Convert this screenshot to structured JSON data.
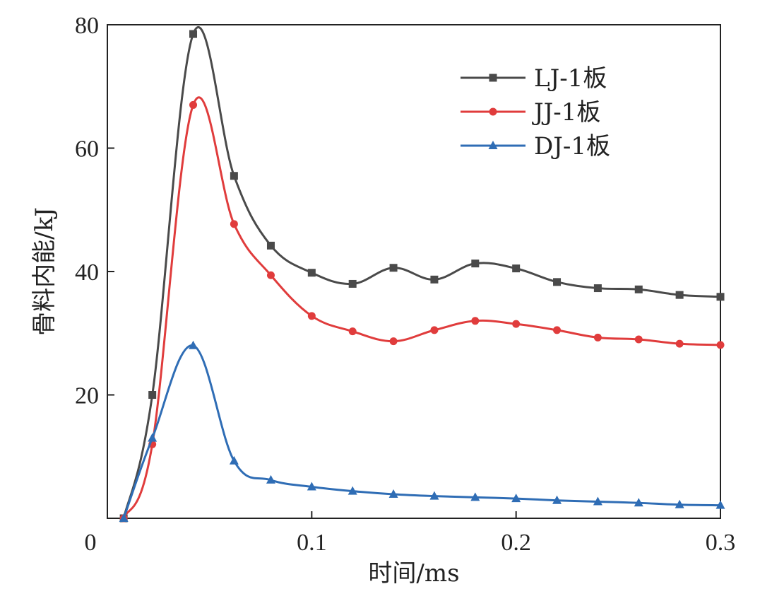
{
  "chart_data": {
    "type": "line",
    "title": "",
    "xlabel": "时间/ms",
    "ylabel": "骨料内能/kJ",
    "xlim": [
      0,
      0.3
    ],
    "ylim": [
      0,
      80
    ],
    "x_ticks": [
      "0",
      "0.1",
      "0.2",
      "0.3"
    ],
    "y_ticks": [
      "20",
      "40",
      "60",
      "80"
    ],
    "grid": false,
    "legend_position": "top-right",
    "series": [
      {
        "name": "LJ-1板",
        "color": "#4a4a4a",
        "marker": "square",
        "points": [
          [
            0.008,
            0
          ],
          [
            0.022,
            20
          ],
          [
            0.042,
            78.5
          ],
          [
            0.062,
            55.5
          ],
          [
            0.08,
            44.2
          ],
          [
            0.1,
            39.8
          ],
          [
            0.12,
            38
          ],
          [
            0.14,
            40.6
          ],
          [
            0.16,
            38.7
          ],
          [
            0.18,
            41.3
          ],
          [
            0.2,
            40.5
          ],
          [
            0.22,
            38.3
          ],
          [
            0.24,
            37.3
          ],
          [
            0.26,
            37.1
          ],
          [
            0.28,
            36.2
          ],
          [
            0.3,
            35.9
          ]
        ]
      },
      {
        "name": "JJ-1板",
        "color": "#e03c3c",
        "marker": "circle",
        "points": [
          [
            0.008,
            0
          ],
          [
            0.022,
            12
          ],
          [
            0.042,
            67
          ],
          [
            0.062,
            47.7
          ],
          [
            0.08,
            39.4
          ],
          [
            0.1,
            32.8
          ],
          [
            0.12,
            30.3
          ],
          [
            0.14,
            28.7
          ],
          [
            0.16,
            30.5
          ],
          [
            0.18,
            32
          ],
          [
            0.2,
            31.5
          ],
          [
            0.22,
            30.5
          ],
          [
            0.24,
            29.3
          ],
          [
            0.26,
            29
          ],
          [
            0.28,
            28.3
          ],
          [
            0.3,
            28.1
          ]
        ]
      },
      {
        "name": "DJ-1板",
        "color": "#2f6db5",
        "marker": "triangle",
        "points": [
          [
            0.008,
            0
          ],
          [
            0.022,
            13
          ],
          [
            0.042,
            28
          ],
          [
            0.062,
            9.3
          ],
          [
            0.08,
            6.2
          ],
          [
            0.1,
            5.1
          ],
          [
            0.12,
            4.4
          ],
          [
            0.14,
            3.9
          ],
          [
            0.16,
            3.6
          ],
          [
            0.18,
            3.4
          ],
          [
            0.2,
            3.2
          ],
          [
            0.22,
            2.9
          ],
          [
            0.24,
            2.7
          ],
          [
            0.26,
            2.5
          ],
          [
            0.28,
            2.2
          ],
          [
            0.3,
            2.1
          ]
        ]
      }
    ]
  }
}
